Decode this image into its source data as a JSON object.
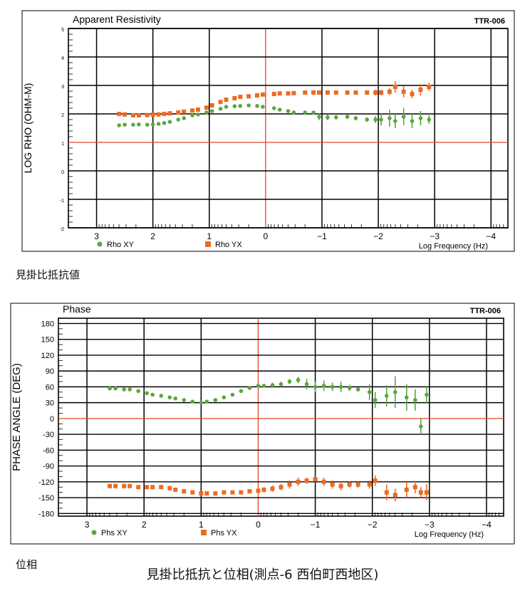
{
  "page": {
    "caption_top": "見掛比抵抗値",
    "caption_bottom": "位相",
    "main_title": "見掛比抵抗と位相(測点-6 西伯町西地区)"
  },
  "colors": {
    "xy": "#5aa83c",
    "yx": "#ee6a22",
    "refline": "#e2472a",
    "grid": "#000000"
  },
  "chart_data": [
    {
      "type": "scatter",
      "title": "Apparent Resistivity",
      "tag": "TTR-006",
      "ylabel": "LOG RHO (OHM-M)",
      "xlabel": "Log Frequency (Hz)",
      "xlim": [
        3.5,
        -4.3
      ],
      "ylim": [
        -2,
        5
      ],
      "x_ticks": [
        "3",
        "2",
        "1",
        "0",
        "−1",
        "−2",
        "−3",
        "−4"
      ],
      "x_tick_values": [
        3,
        2,
        1,
        0,
        -1,
        -2,
        -3,
        -4
      ],
      "y_ticks": [
        "5",
        "4",
        "3",
        "2",
        "1",
        "0",
        "-1",
        "-2"
      ],
      "y_tick_values": [
        5,
        4,
        3,
        2,
        1,
        0,
        -1,
        -2
      ],
      "ref_lines": {
        "x": 0,
        "y": 1
      },
      "series": [
        {
          "name": "Rho XY",
          "marker": "circle",
          "x": [
            2.6,
            2.5,
            2.35,
            2.25,
            2.1,
            2.0,
            1.9,
            1.8,
            1.7,
            1.55,
            1.45,
            1.3,
            1.2,
            1.05,
            0.95,
            0.8,
            0.7,
            0.55,
            0.45,
            0.3,
            0.15,
            0.05,
            -0.15,
            -0.25,
            -0.4,
            -0.5,
            -0.7,
            -0.85,
            -0.95,
            -1.1,
            -1.25,
            -1.45,
            -1.6,
            -1.8,
            -1.95,
            -2.05,
            -2.2,
            -2.3,
            -2.45,
            -2.6,
            -2.75,
            -2.9
          ],
          "y": [
            1.6,
            1.62,
            1.62,
            1.63,
            1.62,
            1.63,
            1.65,
            1.68,
            1.72,
            1.8,
            1.85,
            1.95,
            1.98,
            2.05,
            2.1,
            2.18,
            2.25,
            2.27,
            2.28,
            2.3,
            2.28,
            2.25,
            2.2,
            2.15,
            2.1,
            2.05,
            2.05,
            2.05,
            1.9,
            1.88,
            1.88,
            1.9,
            1.85,
            1.8,
            1.8,
            1.8,
            1.85,
            1.75,
            1.9,
            1.75,
            1.85,
            1.8
          ],
          "err": [
            0,
            0,
            0,
            0,
            0,
            0,
            0,
            0,
            0,
            0,
            0,
            0,
            0,
            0,
            0,
            0,
            0,
            0,
            0,
            0,
            0,
            0,
            0,
            0,
            0,
            0,
            0,
            0,
            0.12,
            0.1,
            0.08,
            0.08,
            0.08,
            0.08,
            0.12,
            0.2,
            0.3,
            0.25,
            0.3,
            0.25,
            0.25,
            0.15
          ]
        },
        {
          "name": "Rho YX",
          "marker": "square",
          "x": [
            2.6,
            2.5,
            2.35,
            2.25,
            2.1,
            2.0,
            1.9,
            1.8,
            1.7,
            1.55,
            1.45,
            1.3,
            1.2,
            1.05,
            0.95,
            0.8,
            0.7,
            0.55,
            0.45,
            0.3,
            0.15,
            0.05,
            -0.15,
            -0.25,
            -0.4,
            -0.5,
            -0.7,
            -0.85,
            -0.95,
            -1.1,
            -1.25,
            -1.45,
            -1.6,
            -1.8,
            -1.95,
            -2.05,
            -2.2,
            -2.3,
            -2.45,
            -2.6,
            -2.75,
            -2.9
          ],
          "y": [
            2.0,
            1.98,
            1.95,
            1.95,
            1.96,
            1.97,
            1.98,
            2.0,
            2.02,
            2.05,
            2.08,
            2.12,
            2.15,
            2.22,
            2.3,
            2.42,
            2.5,
            2.55,
            2.6,
            2.62,
            2.65,
            2.68,
            2.7,
            2.72,
            2.72,
            2.73,
            2.75,
            2.75,
            2.75,
            2.75,
            2.75,
            2.75,
            2.75,
            2.75,
            2.75,
            2.75,
            2.78,
            2.95,
            2.78,
            2.7,
            2.85,
            2.95
          ],
          "err": [
            0,
            0,
            0,
            0,
            0,
            0,
            0,
            0,
            0,
            0,
            0,
            0,
            0,
            0,
            0,
            0,
            0,
            0,
            0,
            0,
            0,
            0,
            0,
            0,
            0,
            0,
            0,
            0,
            0,
            0,
            0,
            0,
            0,
            0,
            0.1,
            0.1,
            0.12,
            0.2,
            0.2,
            0.15,
            0.2,
            0.15
          ]
        }
      ]
    },
    {
      "type": "scatter",
      "title": "Phase",
      "tag": "TTR-006",
      "ylabel": "PHASE ANGLE (DEG)",
      "xlabel": "Log Frequency (Hz)",
      "xlim": [
        3.5,
        -4.3
      ],
      "ylim": [
        -185,
        190
      ],
      "x_ticks": [
        "3",
        "2",
        "1",
        "0",
        "−1",
        "−2",
        "−3",
        "−4"
      ],
      "x_tick_values": [
        3,
        2,
        1,
        0,
        -1,
        -2,
        -3,
        -4
      ],
      "y_ticks": [
        "180",
        "150",
        "120",
        "90",
        "60",
        "30",
        "0",
        "-30",
        "-60",
        "-90",
        "-120",
        "-150",
        "-180"
      ],
      "y_tick_values": [
        180,
        150,
        120,
        90,
        60,
        30,
        0,
        -30,
        -60,
        -90,
        -120,
        -150,
        -180
      ],
      "ref_lines": {
        "x": 0,
        "y": 0
      },
      "series": [
        {
          "name": "Phs XY",
          "marker": "circle",
          "x": [
            2.6,
            2.5,
            2.35,
            2.25,
            2.1,
            1.95,
            1.85,
            1.7,
            1.55,
            1.45,
            1.3,
            1.15,
            1.0,
            0.9,
            0.75,
            0.6,
            0.45,
            0.3,
            0.15,
            0.0,
            -0.1,
            -0.25,
            -0.4,
            -0.55,
            -0.7,
            -0.85,
            -1.0,
            -1.15,
            -1.3,
            -1.45,
            -1.6,
            -1.75,
            -1.95,
            -2.05,
            -2.25,
            -2.4,
            -2.6,
            -2.75,
            -2.85,
            -2.95
          ],
          "y": [
            57,
            57,
            55,
            55,
            52,
            48,
            45,
            43,
            40,
            38,
            35,
            32,
            30,
            32,
            35,
            40,
            45,
            52,
            58,
            62,
            62,
            63,
            65,
            70,
            73,
            65,
            60,
            62,
            60,
            60,
            58,
            55,
            50,
            35,
            43,
            50,
            40,
            35,
            -15,
            45
          ],
          "err": [
            0,
            0,
            0,
            0,
            0,
            0,
            0,
            0,
            0,
            0,
            0,
            0,
            0,
            0,
            0,
            0,
            0,
            0,
            0,
            0,
            0,
            5,
            5,
            5,
            6,
            10,
            10,
            10,
            8,
            10,
            6,
            4,
            15,
            15,
            20,
            30,
            25,
            20,
            15,
            15
          ]
        },
        {
          "name": "Phs YX",
          "marker": "square",
          "x": [
            2.6,
            2.5,
            2.35,
            2.25,
            2.1,
            1.95,
            1.85,
            1.7,
            1.55,
            1.45,
            1.3,
            1.15,
            1.0,
            0.9,
            0.75,
            0.6,
            0.45,
            0.3,
            0.15,
            0.0,
            -0.1,
            -0.25,
            -0.4,
            -0.55,
            -0.7,
            -0.85,
            -1.0,
            -1.15,
            -1.3,
            -1.45,
            -1.6,
            -1.75,
            -1.95,
            -2.05,
            -2.25,
            -2.4,
            -2.6,
            -2.75,
            -2.85,
            -2.95
          ],
          "y": [
            -128,
            -128,
            -128,
            -128,
            -130,
            -130,
            -130,
            -130,
            -132,
            -135,
            -138,
            -140,
            -142,
            -142,
            -142,
            -140,
            -140,
            -140,
            -138,
            -137,
            -135,
            -133,
            -130,
            -125,
            -120,
            -118,
            -115,
            -120,
            -125,
            -128,
            -125,
            -125,
            -125,
            -118,
            -140,
            -145,
            -135,
            -130,
            -140,
            -140
          ],
          "err": [
            0,
            0,
            0,
            0,
            0,
            0,
            0,
            0,
            0,
            0,
            0,
            0,
            0,
            0,
            0,
            0,
            0,
            0,
            0,
            0,
            5,
            6,
            6,
            8,
            8,
            6,
            5,
            8,
            8,
            8,
            6,
            6,
            8,
            10,
            15,
            12,
            15,
            12,
            10,
            15
          ]
        }
      ]
    }
  ]
}
